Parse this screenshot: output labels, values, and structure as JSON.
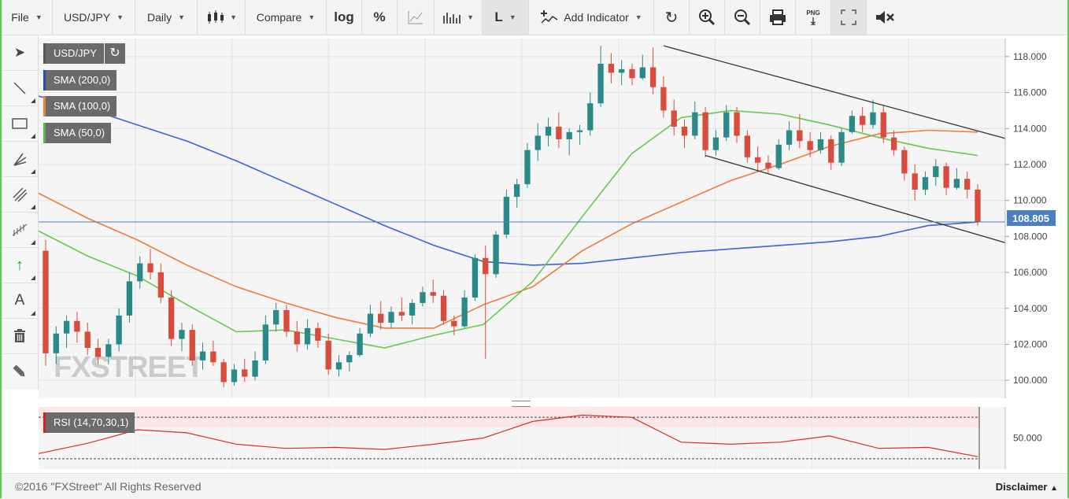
{
  "toolbar": {
    "file": "File",
    "symbol": "USD/JPY",
    "interval": "Daily",
    "compare": "Compare",
    "log": "log",
    "percent": "%",
    "line_type": "L",
    "add_indicator": "Add Indicator",
    "png": "PNG"
  },
  "legend": {
    "symbol": "USD/JPY",
    "sma200": "SMA (200,0)",
    "sma100": "SMA (100,0)",
    "sma50": "SMA (50,0)",
    "rsi": "RSI (14,70,30,1)"
  },
  "watermark": "FXSTREET",
  "current_price": "108.805",
  "footer": {
    "copyright": "©2016 \"FXStreet\" All Rights Reserved",
    "disclaimer": "Disclaimer"
  },
  "colors": {
    "up": "#2a8a8a",
    "down": "#d94b3c",
    "sma200": "#3d62d9",
    "sma100": "#f07c3a",
    "sma50": "#66c94d",
    "rsi": "#e02a2a",
    "price_line": "#4a7fc0"
  },
  "chart_data": {
    "type": "candlestick",
    "series": [
      {
        "name": "USD/JPY",
        "values": [
          [
            107.2,
            107.8,
            100.8,
            101.5
          ],
          [
            101.5,
            103.0,
            100.9,
            102.6
          ],
          [
            102.6,
            103.6,
            101.8,
            103.3
          ],
          [
            103.3,
            103.8,
            102.1,
            102.7
          ],
          [
            102.7,
            103.2,
            101.4,
            101.8
          ],
          [
            101.8,
            102.3,
            100.9,
            101.3
          ],
          [
            101.3,
            102.3,
            100.9,
            102.0
          ],
          [
            102.0,
            104.0,
            101.6,
            103.6
          ],
          [
            103.6,
            106.0,
            103.2,
            105.5
          ],
          [
            105.5,
            106.9,
            105.1,
            106.5
          ],
          [
            106.5,
            107.3,
            105.6,
            106.0
          ],
          [
            106.0,
            106.5,
            104.3,
            104.6
          ],
          [
            104.6,
            105.0,
            101.9,
            102.3
          ],
          [
            102.3,
            103.2,
            101.6,
            102.8
          ],
          [
            102.8,
            103.1,
            100.8,
            101.1
          ],
          [
            101.1,
            102.1,
            100.6,
            101.6
          ],
          [
            101.6,
            102.2,
            100.8,
            101.0
          ],
          [
            101.0,
            101.2,
            99.6,
            99.9
          ],
          [
            99.9,
            100.9,
            99.7,
            100.6
          ],
          [
            100.6,
            101.2,
            99.9,
            100.2
          ],
          [
            100.2,
            101.6,
            100.0,
            101.1
          ],
          [
            101.1,
            103.6,
            100.9,
            103.1
          ],
          [
            103.1,
            104.3,
            102.7,
            103.9
          ],
          [
            103.9,
            104.2,
            102.4,
            102.7
          ],
          [
            102.7,
            103.3,
            101.6,
            102.0
          ],
          [
            102.0,
            103.4,
            101.7,
            102.9
          ],
          [
            102.9,
            103.2,
            101.8,
            102.2
          ],
          [
            102.2,
            102.6,
            100.3,
            100.6
          ],
          [
            100.6,
            101.4,
            100.2,
            101.0
          ],
          [
            101.0,
            101.6,
            100.5,
            101.4
          ],
          [
            101.4,
            102.9,
            101.3,
            102.6
          ],
          [
            102.6,
            104.2,
            102.4,
            103.7
          ],
          [
            103.7,
            104.4,
            102.8,
            103.2
          ],
          [
            103.2,
            104.1,
            102.9,
            103.8
          ],
          [
            103.8,
            104.6,
            103.3,
            103.6
          ],
          [
            103.6,
            104.5,
            103.1,
            104.3
          ],
          [
            104.3,
            105.2,
            104.1,
            104.9
          ],
          [
            104.9,
            105.6,
            104.3,
            104.7
          ],
          [
            104.7,
            105.0,
            103.1,
            103.3
          ],
          [
            103.3,
            103.6,
            102.5,
            103.0
          ],
          [
            103.0,
            105.0,
            102.9,
            104.6
          ],
          [
            104.6,
            107.0,
            104.4,
            106.8
          ],
          [
            106.8,
            107.5,
            101.2,
            105.9
          ],
          [
            105.9,
            108.3,
            105.7,
            108.1
          ],
          [
            108.1,
            110.6,
            107.9,
            110.2
          ],
          [
            110.2,
            111.2,
            109.6,
            110.9
          ],
          [
            110.9,
            113.2,
            110.7,
            112.8
          ],
          [
            112.8,
            114.3,
            112.2,
            113.6
          ],
          [
            113.6,
            114.6,
            113.0,
            114.1
          ],
          [
            114.1,
            114.9,
            112.9,
            113.4
          ],
          [
            113.4,
            114.0,
            112.5,
            113.8
          ],
          [
            113.8,
            114.2,
            113.1,
            113.9
          ],
          [
            113.9,
            116.0,
            113.6,
            115.4
          ],
          [
            115.4,
            118.6,
            115.2,
            117.6
          ],
          [
            117.6,
            118.2,
            116.5,
            117.1
          ],
          [
            117.1,
            117.8,
            116.4,
            117.3
          ],
          [
            117.3,
            117.6,
            116.4,
            116.8
          ],
          [
            116.8,
            118.1,
            116.7,
            117.4
          ],
          [
            117.4,
            118.5,
            115.9,
            116.3
          ],
          [
            116.3,
            116.9,
            114.6,
            115.0
          ],
          [
            115.0,
            115.6,
            113.6,
            114.1
          ],
          [
            114.1,
            114.5,
            112.9,
            113.6
          ],
          [
            113.6,
            115.5,
            113.4,
            114.9
          ],
          [
            114.9,
            115.2,
            112.4,
            112.8
          ],
          [
            112.8,
            113.9,
            112.5,
            113.5
          ],
          [
            113.5,
            115.3,
            113.3,
            114.9
          ],
          [
            114.9,
            115.2,
            113.2,
            113.6
          ],
          [
            113.6,
            113.9,
            112.1,
            112.4
          ],
          [
            112.4,
            113.0,
            111.6,
            112.1
          ],
          [
            112.1,
            112.5,
            111.5,
            111.8
          ],
          [
            111.8,
            113.4,
            111.7,
            113.1
          ],
          [
            113.1,
            114.4,
            112.8,
            113.9
          ],
          [
            113.9,
            114.8,
            112.9,
            113.3
          ],
          [
            113.3,
            113.8,
            112.4,
            112.8
          ],
          [
            112.8,
            113.8,
            112.6,
            113.4
          ],
          [
            113.4,
            113.6,
            111.7,
            112.1
          ],
          [
            112.1,
            114.0,
            111.9,
            113.8
          ],
          [
            113.8,
            115.0,
            113.7,
            114.7
          ],
          [
            114.7,
            115.2,
            113.8,
            114.2
          ],
          [
            114.2,
            115.6,
            114.0,
            114.9
          ],
          [
            114.9,
            115.3,
            113.2,
            113.5
          ],
          [
            113.5,
            113.9,
            112.5,
            112.8
          ],
          [
            112.8,
            113.0,
            111.1,
            111.5
          ],
          [
            111.5,
            112.0,
            110.0,
            110.6
          ],
          [
            110.6,
            111.6,
            110.3,
            111.3
          ],
          [
            111.3,
            112.3,
            110.8,
            111.9
          ],
          [
            111.9,
            112.1,
            110.3,
            110.7
          ],
          [
            110.7,
            111.8,
            110.6,
            111.2
          ],
          [
            111.2,
            111.6,
            110.1,
            110.6
          ],
          [
            110.6,
            110.9,
            108.6,
            108.8
          ]
        ]
      },
      {
        "name": "SMA (200,0)",
        "values": [
          115.8,
          115.1,
          114.2,
          113.3,
          112.2,
          111.0,
          109.8,
          108.6,
          107.5,
          106.6,
          106.4,
          106.5,
          106.8,
          107.1,
          107.3,
          107.5,
          107.7,
          108.0,
          108.6,
          108.8
        ]
      },
      {
        "name": "SMA (100,0)",
        "values": [
          110.4,
          109.0,
          107.8,
          106.4,
          105.2,
          104.3,
          103.5,
          102.9,
          102.9,
          104.2,
          105.2,
          107.2,
          108.7,
          109.9,
          111.1,
          112.0,
          113.0,
          113.7,
          113.9,
          113.8
        ]
      },
      {
        "name": "SMA (50,0)",
        "values": [
          108.3,
          106.9,
          105.8,
          104.2,
          102.7,
          102.8,
          102.3,
          101.8,
          102.5,
          103.1,
          105.5,
          109.1,
          112.6,
          114.6,
          115.0,
          114.8,
          114.2,
          113.5,
          112.9,
          112.5
        ]
      },
      {
        "name": "RSI (14,70,30,1)",
        "values": [
          35,
          45,
          58,
          55,
          44,
          40,
          41,
          39,
          44,
          50,
          66,
          72,
          70,
          46,
          44,
          46,
          52,
          40,
          41,
          32
        ]
      }
    ],
    "trendlines": [
      {
        "from": [
          59,
          118.6
        ],
        "to": [
          89,
          113.7
        ]
      },
      {
        "from": [
          63,
          112.5
        ],
        "to": [
          89,
          107.9
        ]
      }
    ],
    "ylim": [
      99,
      119
    ],
    "yticks": [
      "100.000",
      "102.000",
      "104.000",
      "106.000",
      "108.000",
      "110.000",
      "112.000",
      "114.000",
      "116.000",
      "118.000"
    ],
    "rsi_tick": "50.000",
    "rsi_levels": [
      70,
      30
    ],
    "grid": true
  }
}
